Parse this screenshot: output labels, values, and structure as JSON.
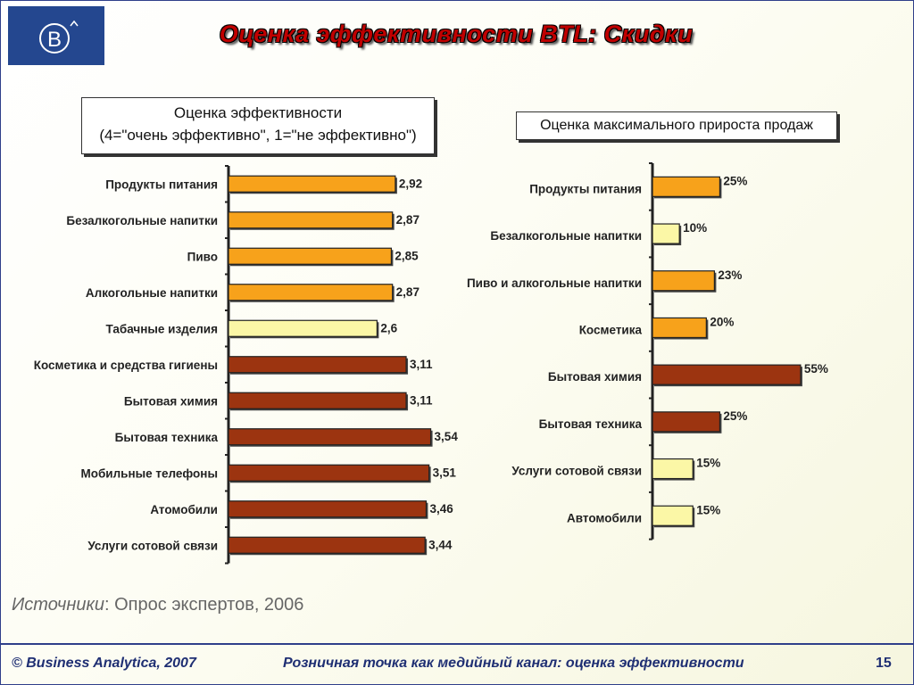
{
  "slide": {
    "title": "Оценка эффективности BTL: Скидки",
    "logo_text": "B",
    "source_label": "Источники",
    "source_text": ": Опрос экспертов, 2006",
    "footer_left": "© Business Analytica, 2007",
    "footer_center": "Розничная точка как медийный канал: оценка эффективности",
    "page_number": "15"
  },
  "colors": {
    "orange": "#f7a21b",
    "light_yellow": "#fbf7a6",
    "dark_red": "#9c3410",
    "title": "#c00000",
    "footer": "#1f2f73"
  },
  "chart_data": [
    {
      "type": "bar",
      "orientation": "horizontal",
      "title_line1": "Оценка эффективности",
      "title_line2": "(4=\"очень эффективно\", 1=\"не эффективно\")",
      "xlim": [
        0,
        4
      ],
      "grid": false,
      "categories": [
        "Продукты питания",
        "Безалкогольные напитки",
        "Пиво",
        "Алкогольные напитки",
        "Табачные изделия",
        "Косметика и средства гигиены",
        "Бытовая химия",
        "Бытовая техника",
        "Мобильные телефоны",
        "Атомобили",
        "Услуги сотовой связи"
      ],
      "values": [
        2.92,
        2.87,
        2.85,
        2.87,
        2.6,
        3.11,
        3.11,
        3.54,
        3.51,
        3.46,
        3.44
      ],
      "labels": [
        "2,92",
        "2,87",
        "2,85",
        "2,87",
        "2,6",
        "3,11",
        "3,11",
        "3,54",
        "3,51",
        "3,46",
        "3,44"
      ],
      "bar_colors": [
        "orange",
        "orange",
        "orange",
        "orange",
        "light_yellow",
        "dark_red",
        "dark_red",
        "dark_red",
        "dark_red",
        "dark_red",
        "dark_red"
      ]
    },
    {
      "type": "bar",
      "orientation": "horizontal",
      "title": "Оценка максимального прироста продаж",
      "xlim": [
        0,
        60
      ],
      "grid": false,
      "categories": [
        "Продукты питания",
        "Безалкогольные напитки",
        "Пиво и алкогольные напитки",
        "Косметика",
        "Бытовая химия",
        "Бытовая техника",
        "Услуги сотовой связи",
        "Автомобили"
      ],
      "values": [
        25,
        10,
        23,
        20,
        55,
        25,
        15,
        15
      ],
      "labels": [
        "25%",
        "10%",
        "23%",
        "20%",
        "55%",
        "25%",
        "15%",
        "15%"
      ],
      "bar_colors": [
        "orange",
        "light_yellow",
        "orange",
        "orange",
        "dark_red",
        "dark_red",
        "light_yellow",
        "light_yellow"
      ]
    }
  ]
}
